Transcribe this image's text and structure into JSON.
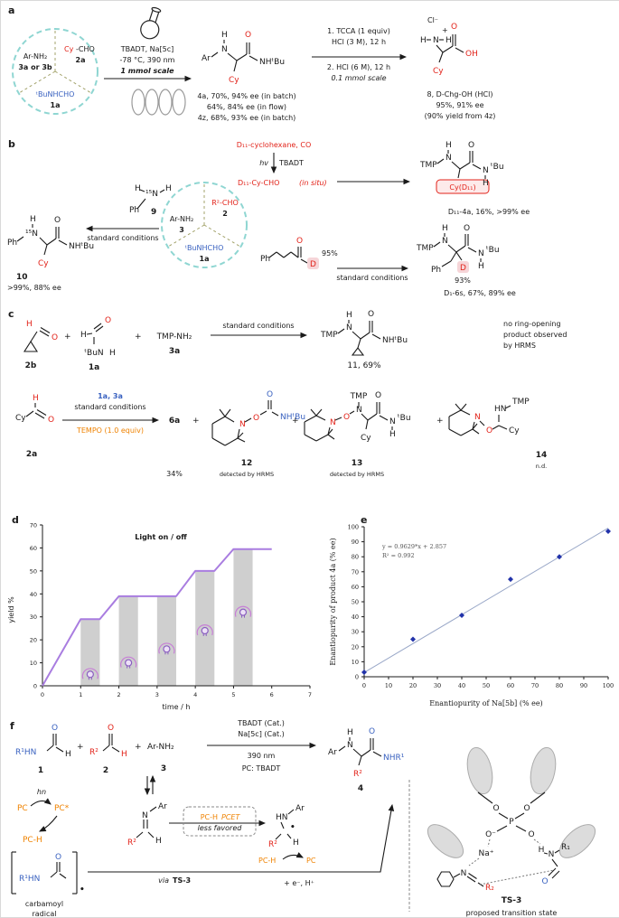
{
  "colors": {
    "red": "#e2231a",
    "blue": "#3a62c0",
    "orange": "#ef8200",
    "teal_circle": "#8fd6d2",
    "olive_dash": "#a3a36b",
    "purple_line": "#a97de0",
    "gray_bar": "#cfcfcf",
    "scatter_point": "#2233aa",
    "pink_highlight": "#f6d5d8"
  },
  "a": {
    "label": "a",
    "circle": {
      "left": "Ar-NH₂",
      "left_id": "3a or 3b",
      "right_cy": "Cy",
      "right_cho": "-CHO",
      "right_id": "2a",
      "bottom": "ᵗBuNHCHO",
      "bottom_id": "1a"
    },
    "cond1": [
      "TBADT, Na[5c]",
      "-78 °C, 390 nm",
      "1 mmol scale"
    ],
    "mol1": {
      "ar": "Ar",
      "h": "H",
      "n": "N",
      "cy": "Cy",
      "o": "O",
      "nhtbu": "NHᵗBu"
    },
    "res1": [
      "4a, 70%, 94% ee (in batch)",
      "64%, 84% ee (in flow)",
      "4z, 68%, 93% ee (in batch)"
    ],
    "cond2": [
      "1. TCCA (1 equiv)",
      "HCl (3 M), 12 h",
      "2. HCl (6 M), 12 h",
      "0.1 mmol scale"
    ],
    "mol2": {
      "cl": "Cl⁻",
      "h1": "H",
      "n": "N",
      "h2": "H",
      "plus": "+",
      "cy": "Cy",
      "o": "O",
      "oh": "OH"
    },
    "res2": [
      "8, D-Chg-OH (HCl)",
      "95%, 91% ee",
      "(90% yield from 4z)"
    ]
  },
  "b": {
    "label": "b",
    "circle": {
      "left": "Ar-NH₂",
      "left_id": "3",
      "right": "R²-CHO",
      "right_id": "2",
      "bottom": "ᵗBuNHCHO",
      "bottom_id": "1a"
    },
    "top": {
      "reagent": "D₁₁-cyclohexane, CO",
      "hv": "hv",
      "cat": "TBADT",
      "aldehyde": "D₁₁-Cy-CHO",
      "insitu": "(in situ)"
    },
    "mol_top": {
      "tmp": "TMP",
      "h": "H",
      "n": "N",
      "cy": "Cy(D₁₁)",
      "o": "O",
      "n2": "N",
      "h2": "H",
      "tbu": "ᵗBu"
    },
    "res_top": "D₁₁-4a, 16%, >99% ee",
    "amine9": {
      "h1": "H",
      "n15": "¹⁵N",
      "h2": "H",
      "ph": "Ph",
      "id": "9"
    },
    "cond_left": "standard conditions",
    "mol10": {
      "ph": "Ph",
      "n15": "¹⁵N",
      "h": "H",
      "cy": "Cy",
      "o": "O",
      "nhtbu": "NHᵗBu",
      "id": "10"
    },
    "res_left": ">99%, 88% ee",
    "ald_bottom": {
      "ph": "Ph",
      "o": "O",
      "d": "D",
      "pct": "95%"
    },
    "cond_bottom": "standard conditions",
    "mol_bottom": {
      "tmp": "TMP",
      "h": "H",
      "n": "N",
      "ph": "Ph",
      "d": "D",
      "pct": "93%",
      "o": "O",
      "n2": "N",
      "h2": "H",
      "tbu": "ᵗBu"
    },
    "res_bottom": "D₁-6s, 67%, 89% ee"
  },
  "c": {
    "label": "c",
    "r1": {
      "ald": {
        "h": "H",
        "o": "O",
        "id": "2b"
      },
      "plus1": "+",
      "fa": {
        "h1": "H",
        "o": "O",
        "tbun": "ᵗBuN",
        "h2": "H",
        "id": "1a"
      },
      "plus2": "+",
      "amine": "TMP-NH₂",
      "amine_id": "3a",
      "cond": "standard conditions",
      "mol": {
        "tmp": "TMP",
        "h": "H",
        "n": "N",
        "o": "O",
        "nhtbu": "NHᵗBu"
      },
      "mol_id": "11, 69%",
      "note": [
        "no ring-opening",
        "product observed",
        "by HRMS"
      ]
    },
    "r2": {
      "ald": {
        "cy": "Cy",
        "h": "H",
        "o": "O",
        "id": "2a"
      },
      "above1": "1a, 3a",
      "above2": "standard conditions",
      "below": "TEMPO (1.0 equiv)",
      "p1": "6a",
      "p1_yield": "34%",
      "plus1": "+",
      "plus2": "+",
      "plus3": "+",
      "m12": {
        "n": "N",
        "o": "O",
        "o2": "O",
        "nhtbu": "NHᵗBu",
        "id": "12",
        "note": "detected by HRMS"
      },
      "m13": {
        "n": "N",
        "o": "O",
        "tmp": "TMP",
        "n2": "N",
        "cy": "Cy",
        "o2": "O",
        "n3": "N",
        "h": "H",
        "tbu": "ᵗBu",
        "id": "13",
        "note": "detected by HRMS"
      },
      "m14": {
        "n": "N",
        "o": "O",
        "cy": "Cy",
        "hn": "HN",
        "tmp": "TMP",
        "id": "14",
        "note": "n.d."
      }
    }
  },
  "f": {
    "label": "f",
    "m1": {
      "r1hn": "R¹HN",
      "o": "O",
      "h": "H",
      "id": "1"
    },
    "plus1": "+",
    "m2": {
      "r2": "R²",
      "o": "O",
      "h": "H",
      "id": "2"
    },
    "plus2": "+",
    "amine": "Ar-NH₂",
    "amine_id": "3",
    "cond_top1": "TBADT (Cat.)",
    "cond_top2": "Na[5c] (Cat.)",
    "cond_b1": "390 nm",
    "cond_b2": "PC: TBADT",
    "m4": {
      "ar": "Ar",
      "h": "H",
      "n": "N",
      "r2": "R²",
      "o": "O",
      "nhr1": "NHR¹",
      "id": "4"
    },
    "pc": "PC",
    "hn": "hn",
    "pcstar": "PC*",
    "pch": "PC-H",
    "carb": {
      "r1hn": "R¹HN",
      "o": "O",
      "dot": "•",
      "cap1": "carbamoyl",
      "cap2": "radical"
    },
    "imine": {
      "ar": "Ar",
      "n": "N",
      "r2": "R²",
      "h": "H"
    },
    "box": {
      "pch": "PC-H",
      "pcet": "PCET",
      "less": "less favored"
    },
    "rad": {
      "hn": "HN",
      "ar": "Ar",
      "r2": "R²",
      "h": "H",
      "dot": "•"
    },
    "via": "via",
    "ts_ref": "TS-3",
    "eh": "+ e⁻, H⁺",
    "pch2": "PC-H",
    "pc2": "PC",
    "ts": {
      "o1": "O",
      "o2": "O",
      "p": "P",
      "om": "O⁻",
      "o3": "O",
      "na": "Na⁺",
      "n": "N",
      "r2": "R₂",
      "h": "H",
      "n2": "N",
      "r1": "R₁",
      "o4": "O",
      "id": "TS-3",
      "caption": "proposed transition state"
    }
  },
  "chart_data": [
    {
      "panel_label": "d",
      "type": "line",
      "title": "Light on / off",
      "xlabel": "time / h",
      "ylabel": "yield %",
      "xlim": [
        0,
        7
      ],
      "ylim": [
        0,
        70
      ],
      "xticks": [
        0,
        1,
        2,
        3,
        4,
        5,
        6,
        7
      ],
      "yticks": [
        0,
        10,
        20,
        30,
        40,
        50,
        60,
        70
      ],
      "points": [
        [
          0,
          0
        ],
        [
          1,
          29
        ],
        [
          1.5,
          29
        ],
        [
          2,
          39
        ],
        [
          3.5,
          39
        ],
        [
          4,
          50
        ],
        [
          4.5,
          50
        ],
        [
          5,
          59.5
        ],
        [
          6,
          59.5
        ]
      ],
      "light_off_bars": [
        [
          1,
          1.5
        ],
        [
          2,
          2.5
        ],
        [
          3,
          3.5
        ],
        [
          4,
          4.5
        ],
        [
          5,
          5.5
        ]
      ],
      "bar_tops": [
        29,
        39,
        39,
        50,
        59.5
      ],
      "bulb_icons": [
        [
          1.25,
          5
        ],
        [
          2.25,
          10
        ],
        [
          3.25,
          16
        ],
        [
          4.25,
          24
        ],
        [
          5.25,
          32
        ]
      ],
      "line_color": "#a97de0",
      "bar_color": "#cfcfcf"
    },
    {
      "panel_label": "e",
      "type": "scatter",
      "equation": "y = 0.9629*x + 2.857",
      "r_squared": "R² = 0.992",
      "xlabel": "Enantiopurity of Na[5b] (% ee)",
      "ylabel": "Enantiopurity of product 4a (% ee)",
      "xlim": [
        0,
        100
      ],
      "ylim": [
        0,
        100
      ],
      "xticks": [
        0,
        10,
        20,
        30,
        40,
        50,
        60,
        70,
        80,
        90,
        100
      ],
      "yticks": [
        0,
        10,
        20,
        30,
        40,
        50,
        60,
        70,
        80,
        90,
        100
      ],
      "points": [
        [
          0,
          3
        ],
        [
          20,
          25
        ],
        [
          40,
          41
        ],
        [
          60,
          65
        ],
        [
          80,
          80
        ],
        [
          100,
          97
        ]
      ],
      "fit": {
        "slope": 0.9629,
        "intercept": 2.857
      },
      "point_color": "#2233aa",
      "line_color": "#9aa8c8"
    }
  ]
}
